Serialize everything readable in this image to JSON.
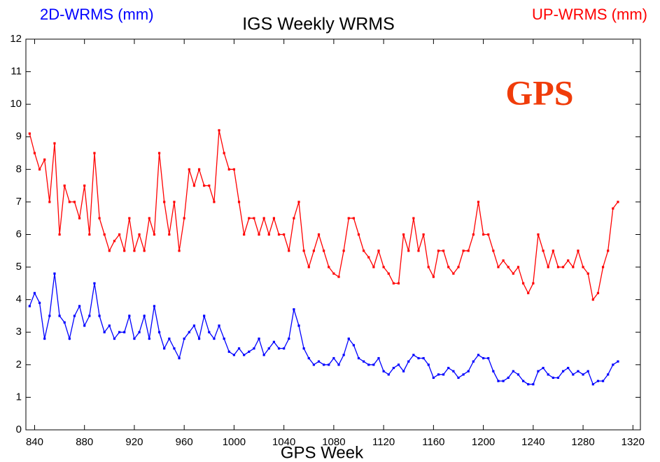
{
  "chart_data": {
    "type": "line",
    "title": "IGS Weekly WRMS",
    "x_label": "GPS Week",
    "annotation": "GPS",
    "x": [
      836,
      840,
      844,
      848,
      852,
      856,
      860,
      864,
      868,
      872,
      876,
      880,
      884,
      888,
      892,
      896,
      900,
      904,
      908,
      912,
      916,
      920,
      924,
      928,
      932,
      936,
      940,
      944,
      948,
      952,
      956,
      960,
      964,
      968,
      972,
      976,
      980,
      984,
      988,
      992,
      996,
      1000,
      1004,
      1008,
      1012,
      1016,
      1020,
      1024,
      1028,
      1032,
      1036,
      1040,
      1044,
      1048,
      1052,
      1056,
      1060,
      1064,
      1068,
      1072,
      1076,
      1080,
      1084,
      1088,
      1092,
      1096,
      1100,
      1104,
      1108,
      1112,
      1116,
      1120,
      1124,
      1128,
      1132,
      1136,
      1140,
      1144,
      1148,
      1152,
      1156,
      1160,
      1164,
      1168,
      1172,
      1176,
      1180,
      1184,
      1188,
      1192,
      1196,
      1200,
      1204,
      1208,
      1212,
      1216,
      1220,
      1224,
      1228,
      1232,
      1236,
      1240,
      1244,
      1248,
      1252,
      1256,
      1260,
      1264,
      1268,
      1272,
      1276,
      1280,
      1284,
      1288,
      1292,
      1296,
      1300,
      1304,
      1308
    ],
    "series": [
      {
        "name": "2D-WRMS (mm)",
        "color": "#0000ff",
        "values": [
          3.8,
          4.2,
          3.9,
          2.8,
          3.5,
          4.8,
          3.5,
          3.3,
          2.8,
          3.5,
          3.8,
          3.2,
          3.5,
          4.5,
          3.5,
          3.0,
          3.2,
          2.8,
          3.0,
          3.0,
          3.5,
          2.8,
          3.0,
          3.5,
          2.8,
          3.8,
          3.0,
          2.5,
          2.8,
          2.5,
          2.2,
          2.8,
          3.0,
          3.2,
          2.8,
          3.5,
          3.0,
          2.8,
          3.2,
          2.8,
          2.4,
          2.3,
          2.5,
          2.3,
          2.4,
          2.5,
          2.8,
          2.3,
          2.5,
          2.7,
          2.5,
          2.5,
          2.8,
          3.7,
          3.2,
          2.5,
          2.2,
          2.0,
          2.1,
          2.0,
          2.0,
          2.2,
          2.0,
          2.3,
          2.8,
          2.6,
          2.2,
          2.1,
          2.0,
          2.0,
          2.2,
          1.8,
          1.7,
          1.9,
          2.0,
          1.8,
          2.1,
          2.3,
          2.2,
          2.2,
          2.0,
          1.6,
          1.7,
          1.7,
          1.9,
          1.8,
          1.6,
          1.7,
          1.8,
          2.1,
          2.3,
          2.2,
          2.2,
          1.8,
          1.5,
          1.5,
          1.6,
          1.8,
          1.7,
          1.5,
          1.4,
          1.4,
          1.8,
          1.9,
          1.7,
          1.6,
          1.6,
          1.8,
          1.9,
          1.7,
          1.8,
          1.7,
          1.8,
          1.4,
          1.5,
          1.5,
          1.7,
          2.0,
          2.1
        ]
      },
      {
        "name": "UP-WRMS (mm)",
        "color": "#ff0000",
        "values": [
          9.1,
          8.5,
          8.0,
          8.3,
          7.0,
          8.8,
          6.0,
          7.5,
          7.0,
          7.0,
          6.5,
          7.5,
          6.0,
          8.5,
          6.5,
          6.0,
          5.5,
          5.8,
          6.0,
          5.5,
          6.5,
          5.5,
          6.0,
          5.5,
          6.5,
          6.0,
          8.5,
          7.0,
          6.0,
          7.0,
          5.5,
          6.5,
          8.0,
          7.5,
          8.0,
          7.5,
          7.5,
          7.0,
          9.2,
          8.5,
          8.0,
          8.0,
          7.0,
          6.0,
          6.5,
          6.5,
          6.0,
          6.5,
          6.0,
          6.5,
          6.0,
          6.0,
          5.5,
          6.5,
          7.0,
          5.5,
          5.0,
          5.5,
          6.0,
          5.5,
          5.0,
          4.8,
          4.7,
          5.5,
          6.5,
          6.5,
          6.0,
          5.5,
          5.3,
          5.0,
          5.5,
          5.0,
          4.8,
          4.5,
          4.5,
          6.0,
          5.5,
          6.5,
          5.5,
          6.0,
          5.0,
          4.7,
          5.5,
          5.5,
          5.0,
          4.8,
          5.0,
          5.5,
          5.5,
          6.0,
          7.0,
          6.0,
          6.0,
          5.5,
          5.0,
          5.2,
          5.0,
          4.8,
          5.0,
          4.5,
          4.2,
          4.5,
          6.0,
          5.5,
          5.0,
          5.5,
          5.0,
          5.0,
          5.2,
          5.0,
          5.5,
          5.0,
          4.8,
          4.0,
          4.2,
          5.0,
          5.5,
          6.8,
          7.0
        ]
      }
    ],
    "xlim": [
      833,
      1326
    ],
    "xticks": [
      840,
      880,
      920,
      960,
      1000,
      1040,
      1080,
      1120,
      1160,
      1200,
      1240,
      1280,
      1320
    ],
    "ylim": [
      0,
      12
    ],
    "yticks": [
      0,
      1,
      2,
      3,
      4,
      5,
      6,
      7,
      8,
      9,
      10,
      11,
      12
    ],
    "grid": false,
    "markers": true
  }
}
